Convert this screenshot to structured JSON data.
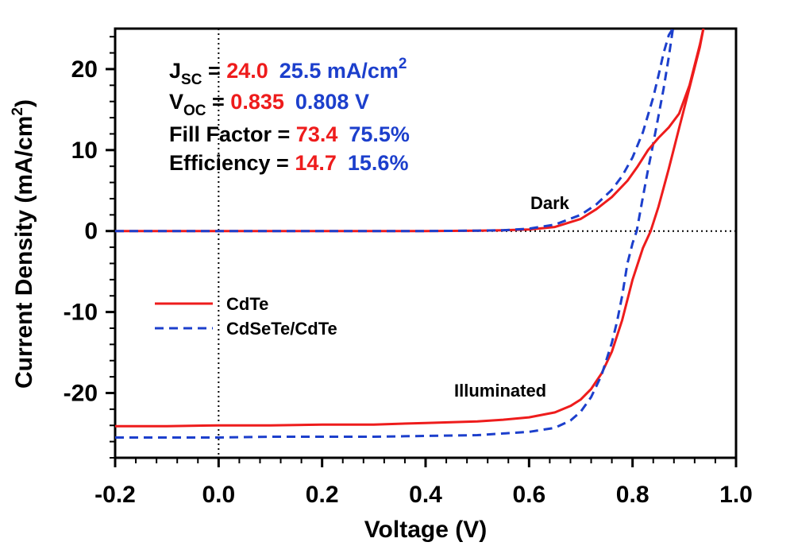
{
  "colors": {
    "cdte": "#ee1c1c",
    "cdsete": "#1c3fcc",
    "axis": "#000000"
  },
  "annotations": {
    "jsc": {
      "label": "J",
      "sub": "SC",
      "eq": " = ",
      "v1": "24.0",
      "v2": "25.5 mA/cm",
      "sup": "2"
    },
    "voc": {
      "label": "V",
      "sub": "OC",
      "eq": " = ",
      "v1": "0.835",
      "v2": "0.808 V"
    },
    "ff": {
      "label": "Fill Factor = ",
      "v1": "73.4",
      "v2": "75.5%"
    },
    "eff": {
      "label": "Efficiency = ",
      "v1": "14.7",
      "v2": "15.6%"
    }
  },
  "chart_data": {
    "type": "line",
    "xlabel": "Voltage (V)",
    "ylabel": "Current Density (mA/cm",
    "ylabel_sup": "2",
    "ylabel_close": ")",
    "xlim": [
      -0.2,
      1.0
    ],
    "ylim": [
      -28,
      25
    ],
    "xticks": [
      -0.2,
      0.0,
      0.2,
      0.4,
      0.6,
      0.8,
      1.0
    ],
    "xtick_labels": [
      "-0.2",
      "0.0",
      "0.2",
      "0.4",
      "0.6",
      "0.8",
      "1.0"
    ],
    "yticks": [
      -20,
      -10,
      0,
      10,
      20
    ],
    "ytick_labels": [
      "-20",
      "-10",
      "0",
      "10",
      "20"
    ],
    "reference_lines": {
      "x": 0,
      "y": 0,
      "style": "dotted"
    },
    "grid": false,
    "legend": {
      "position": "middle-left",
      "entries": [
        "CdTe",
        "CdSeTe/CdTe"
      ]
    },
    "curve_labels": {
      "dark": "Dark",
      "illuminated": "Illuminated"
    },
    "series": [
      {
        "name": "CdTe",
        "condition": "illuminated",
        "style": "solid",
        "x": [
          -0.2,
          -0.1,
          0.0,
          0.1,
          0.2,
          0.3,
          0.4,
          0.5,
          0.55,
          0.6,
          0.65,
          0.68,
          0.7,
          0.72,
          0.74,
          0.76,
          0.78,
          0.8,
          0.82,
          0.835,
          0.85,
          0.87,
          0.89,
          0.91,
          0.93,
          0.937
        ],
        "y": [
          -24.1,
          -24.1,
          -24.0,
          -24.0,
          -23.9,
          -23.9,
          -23.7,
          -23.5,
          -23.3,
          -23.0,
          -22.4,
          -21.6,
          -20.8,
          -19.5,
          -17.6,
          -14.9,
          -11.0,
          -6.0,
          -2.1,
          0.0,
          3.0,
          7.7,
          12.7,
          17.7,
          22.7,
          25.0
        ]
      },
      {
        "name": "CdSeTe/CdTe",
        "condition": "illuminated",
        "style": "dashed",
        "x": [
          -0.2,
          -0.1,
          0.0,
          0.1,
          0.2,
          0.3,
          0.4,
          0.5,
          0.55,
          0.6,
          0.65,
          0.68,
          0.7,
          0.72,
          0.74,
          0.76,
          0.77,
          0.78,
          0.79,
          0.8,
          0.808,
          0.82,
          0.83,
          0.84,
          0.85,
          0.86,
          0.87,
          0.878
        ],
        "y": [
          -25.5,
          -25.5,
          -25.5,
          -25.4,
          -25.4,
          -25.4,
          -25.3,
          -25.2,
          -25.0,
          -24.8,
          -24.3,
          -23.4,
          -22.3,
          -20.5,
          -17.8,
          -13.8,
          -11.2,
          -8.0,
          -4.0,
          -1.5,
          0.0,
          4.2,
          7.6,
          10.8,
          14.2,
          17.6,
          21.5,
          25.0
        ]
      },
      {
        "name": "CdTe",
        "condition": "dark",
        "style": "solid",
        "x": [
          -0.2,
          0.0,
          0.2,
          0.4,
          0.5,
          0.55,
          0.6,
          0.65,
          0.7,
          0.73,
          0.76,
          0.79,
          0.81,
          0.83,
          0.85,
          0.87,
          0.89,
          0.91,
          0.93,
          0.937
        ],
        "y": [
          0.0,
          0.0,
          0.0,
          0.0,
          0.05,
          0.1,
          0.2,
          0.5,
          1.5,
          2.7,
          4.2,
          6.2,
          8.0,
          10.0,
          11.5,
          12.8,
          14.5,
          18.0,
          23.0,
          25.0
        ]
      },
      {
        "name": "CdSeTe/CdTe",
        "condition": "dark",
        "style": "dashed",
        "x": [
          -0.2,
          0.0,
          0.2,
          0.4,
          0.5,
          0.55,
          0.6,
          0.65,
          0.7,
          0.73,
          0.76,
          0.78,
          0.8,
          0.82,
          0.84,
          0.85,
          0.86,
          0.87,
          0.878
        ],
        "y": [
          0.0,
          0.0,
          0.0,
          0.0,
          0.05,
          0.1,
          0.3,
          0.8,
          2.0,
          3.3,
          5.1,
          6.8,
          9.1,
          12.2,
          16.5,
          19.2,
          22.0,
          24.2,
          25.0
        ]
      }
    ]
  }
}
